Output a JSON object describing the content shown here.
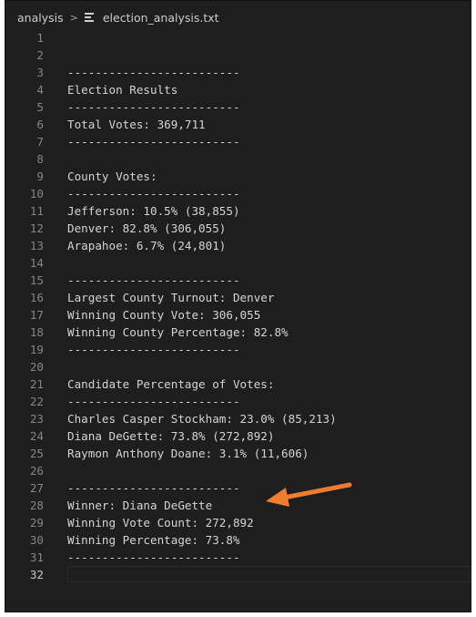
{
  "breadcrumb": {
    "folder": "analysis",
    "separator": ">",
    "file": "election_analysis.txt"
  },
  "lines": [
    {
      "n": "1",
      "text": ""
    },
    {
      "n": "2",
      "text": ""
    },
    {
      "n": "3",
      "text": "-------------------------"
    },
    {
      "n": "4",
      "text": "Election Results"
    },
    {
      "n": "5",
      "text": "-------------------------"
    },
    {
      "n": "6",
      "text": "Total Votes: 369,711"
    },
    {
      "n": "7",
      "text": "-------------------------"
    },
    {
      "n": "8",
      "text": ""
    },
    {
      "n": "9",
      "text": "County Votes:"
    },
    {
      "n": "10",
      "text": "-------------------------"
    },
    {
      "n": "11",
      "text": "Jefferson: 10.5% (38,855)"
    },
    {
      "n": "12",
      "text": "Denver: 82.8% (306,055)"
    },
    {
      "n": "13",
      "text": "Arapahoe: 6.7% (24,801)"
    },
    {
      "n": "14",
      "text": ""
    },
    {
      "n": "15",
      "text": "-------------------------"
    },
    {
      "n": "16",
      "text": "Largest County Turnout: Denver"
    },
    {
      "n": "17",
      "text": "Winning County Vote: 306,055"
    },
    {
      "n": "18",
      "text": "Winning County Percentage: 82.8%"
    },
    {
      "n": "19",
      "text": "-------------------------"
    },
    {
      "n": "20",
      "text": ""
    },
    {
      "n": "21",
      "text": "Candidate Percentage of Votes:"
    },
    {
      "n": "22",
      "text": "-------------------------"
    },
    {
      "n": "23",
      "text": "Charles Casper Stockham: 23.0% (85,213)"
    },
    {
      "n": "24",
      "text": "Diana DeGette: 73.8% (272,892)"
    },
    {
      "n": "25",
      "text": "Raymon Anthony Doane: 3.1% (11,606)"
    },
    {
      "n": "26",
      "text": ""
    },
    {
      "n": "27",
      "text": "-------------------------"
    },
    {
      "n": "28",
      "text": "Winner: Diana DeGette"
    },
    {
      "n": "29",
      "text": "Winning Vote Count: 272,892"
    },
    {
      "n": "30",
      "text": "Winning Percentage: 73.8%"
    },
    {
      "n": "31",
      "text": "-------------------------"
    },
    {
      "n": "32",
      "text": ""
    }
  ],
  "colors": {
    "editor_bg": "#1e1e1e",
    "text": "#d4d4d4",
    "line_number": "#858585",
    "arrow": "#ed7d31"
  },
  "annotation": {
    "icon": "arrow-left-icon"
  }
}
